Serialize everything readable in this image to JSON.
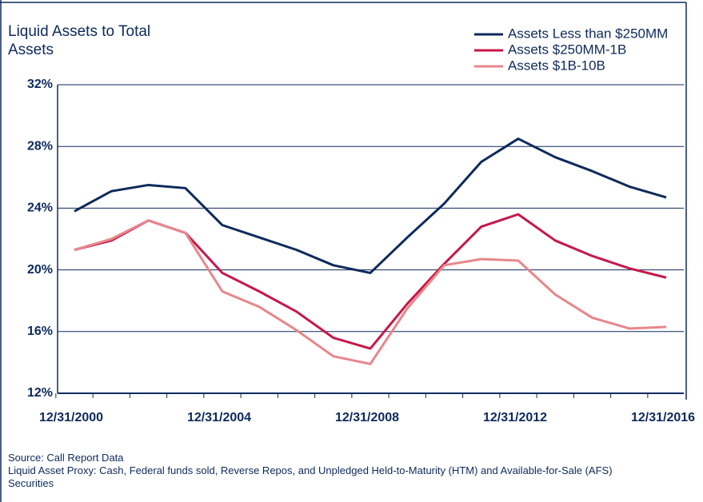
{
  "chart_data": {
    "type": "line",
    "title": "Liquid Assets to Total Assets",
    "categories": [
      "12/31/2000",
      null,
      null,
      null,
      "12/31/2004",
      null,
      null,
      null,
      "12/31/2008",
      null,
      null,
      null,
      "12/31/2012",
      null,
      null,
      null,
      "12/31/2016"
    ],
    "series": [
      {
        "name": "Assets Less than $250MM",
        "color": "#0d2a5c",
        "values": [
          23.8,
          25.1,
          25.5,
          25.3,
          22.9,
          22.1,
          21.3,
          20.3,
          19.8,
          22.1,
          24.3,
          27.0,
          28.5,
          27.3,
          26.4,
          25.4,
          24.7
        ]
      },
      {
        "name": "Assets $250MM-1B",
        "color": "#c8174a",
        "values": [
          21.3,
          21.9,
          23.2,
          22.4,
          19.8,
          18.6,
          17.3,
          15.6,
          14.9,
          17.8,
          20.4,
          22.8,
          23.6,
          21.9,
          20.9,
          20.1,
          19.5
        ]
      },
      {
        "name": "Assets $1B-10B",
        "color": "#e8868a",
        "values": [
          21.3,
          22.0,
          23.2,
          22.4,
          18.6,
          17.6,
          16.1,
          14.4,
          13.9,
          17.5,
          20.3,
          20.7,
          20.6,
          18.4,
          16.9,
          16.2,
          16.3
        ]
      }
    ],
    "ylim": [
      12,
      32
    ],
    "yticks": [
      {
        "value": 12,
        "label": "12%"
      },
      {
        "value": 16,
        "label": "16%"
      },
      {
        "value": 20,
        "label": "20%"
      },
      {
        "value": 24,
        "label": "24%"
      },
      {
        "value": 28,
        "label": "28%"
      },
      {
        "value": 32,
        "label": "32%"
      }
    ],
    "grid": true,
    "legend": "upper right",
    "notes": [
      "Source: Call Report Data",
      "Liquid Asset Proxy:  Cash, Federal funds sold, Reverse Repos, and Unpledged Held-to-Maturity (HTM) and Available-for-Sale (AFS) Securities"
    ]
  }
}
